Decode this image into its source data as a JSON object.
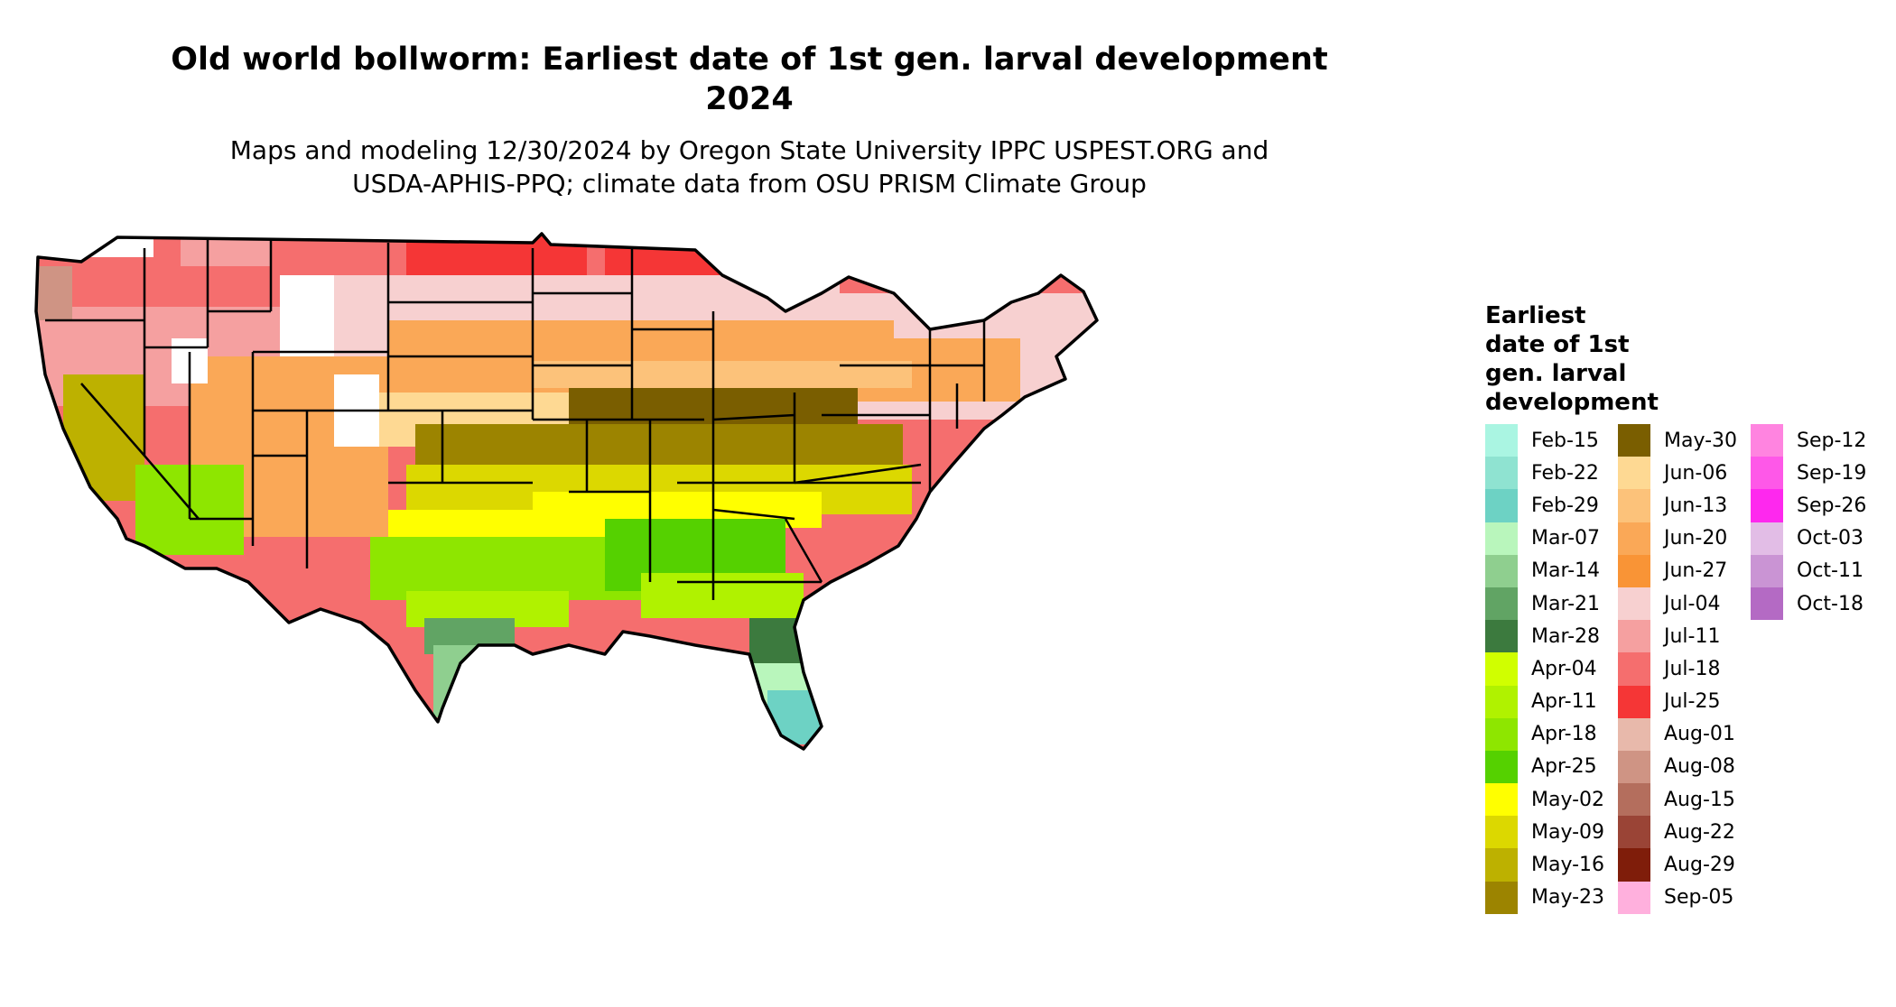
{
  "title_line1": "Old world bollworm: Earliest date of 1st gen. larval development",
  "title_line2": "2024",
  "subtitle_line1": "Maps and modeling 12/30/2024 by Oregon State University IPPC USPEST.ORG and",
  "subtitle_line2": "USDA-APHIS-PPQ; climate data from OSU PRISM Climate Group",
  "legend": {
    "title_lines": [
      "Earliest",
      "date of 1st",
      "gen. larval",
      "development"
    ],
    "items": [
      {
        "label": "Feb-15",
        "color": "#aaf5e2"
      },
      {
        "label": "Feb-22",
        "color": "#8fe3d1"
      },
      {
        "label": "Feb-29",
        "color": "#6dd2c4"
      },
      {
        "label": "Mar-07",
        "color": "#b9f6bc"
      },
      {
        "label": "Mar-14",
        "color": "#8fcf8f"
      },
      {
        "label": "Mar-21",
        "color": "#61a464"
      },
      {
        "label": "Mar-28",
        "color": "#3c7a3e"
      },
      {
        "label": "Apr-04",
        "color": "#d0ff00"
      },
      {
        "label": "Apr-11",
        "color": "#b0f200"
      },
      {
        "label": "Apr-18",
        "color": "#8ee600"
      },
      {
        "label": "Apr-25",
        "color": "#55d100"
      },
      {
        "label": "May-02",
        "color": "#ffff00"
      },
      {
        "label": "May-09",
        "color": "#dcd800"
      },
      {
        "label": "May-16",
        "color": "#bdb100"
      },
      {
        "label": "May-23",
        "color": "#9c8400"
      },
      {
        "label": "May-30",
        "color": "#7a5e00"
      },
      {
        "label": "Jun-06",
        "color": "#fed993"
      },
      {
        "label": "Jun-13",
        "color": "#fcc27a"
      },
      {
        "label": "Jun-20",
        "color": "#faa857"
      },
      {
        "label": "Jun-27",
        "color": "#f99436"
      },
      {
        "label": "Jul-04",
        "color": "#f7d0d0"
      },
      {
        "label": "Jul-11",
        "color": "#f5a0a0"
      },
      {
        "label": "Jul-18",
        "color": "#f56e6e"
      },
      {
        "label": "Jul-25",
        "color": "#f53636"
      },
      {
        "label": "Aug-01",
        "color": "#e8b9ab"
      },
      {
        "label": "Aug-08",
        "color": "#cf9484"
      },
      {
        "label": "Aug-15",
        "color": "#b46e5d"
      },
      {
        "label": "Aug-22",
        "color": "#9a4436"
      },
      {
        "label": "Aug-29",
        "color": "#7f1d0a"
      },
      {
        "label": "Sep-05",
        "color": "#ffb0dd"
      },
      {
        "label": "Sep-12",
        "color": "#ff84e0"
      },
      {
        "label": "Sep-19",
        "color": "#fe58e8"
      },
      {
        "label": "Sep-26",
        "color": "#fe28ee"
      },
      {
        "label": "Oct-03",
        "color": "#e2bde6"
      },
      {
        "label": "Oct-11",
        "color": "#ca94d4"
      },
      {
        "label": "Oct-18",
        "color": "#b46ac4"
      }
    ]
  }
}
